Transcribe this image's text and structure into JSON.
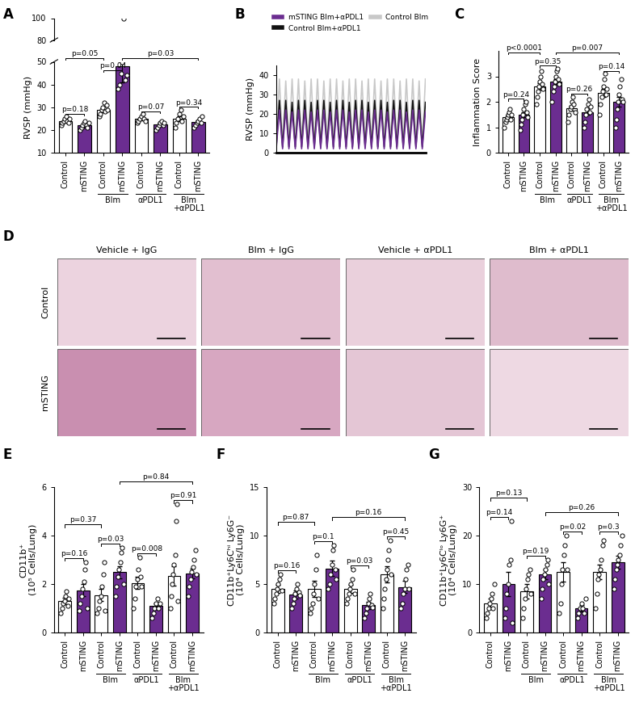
{
  "chart_data": [
    {
      "panel": "A",
      "type": "bar",
      "y_label": "RVSP (mmHg)",
      "categories": [
        "Control",
        "mSTING",
        "Control",
        "mSTING",
        "Control",
        "mSTING",
        "Control",
        "mSTING"
      ],
      "values": [
        24,
        22,
        29,
        48,
        25,
        22.5,
        25,
        23.5
      ],
      "errors": [
        0.8,
        0.9,
        1.2,
        7,
        0.8,
        0.7,
        1.1,
        0.6
      ],
      "points": [
        [
          22,
          23,
          24,
          25,
          26,
          24,
          23,
          25
        ],
        [
          20,
          21,
          22,
          23,
          24,
          22,
          21,
          23
        ],
        [
          26,
          27,
          29,
          30,
          32,
          28,
          31,
          29
        ],
        [
          38,
          40,
          45,
          50,
          100,
          42,
          44
        ],
        [
          23,
          24,
          25,
          26,
          27,
          25,
          24
        ],
        [
          20,
          21,
          22,
          23,
          24,
          22,
          23
        ],
        [
          21,
          23,
          25,
          27,
          29,
          24,
          26
        ],
        [
          21,
          22,
          23,
          24,
          25,
          23,
          26
        ]
      ],
      "colors": [
        "#ffffff",
        "#6b2d90",
        "#ffffff",
        "#6b2d90",
        "#ffffff",
        "#6b2d90",
        "#ffffff",
        "#6b2d90"
      ],
      "ylim": [
        10,
        50
      ],
      "yticks": [
        10,
        20,
        30,
        40,
        50
      ],
      "break": {
        "ylim": [
          80,
          100
        ],
        "yticks": [
          80,
          100
        ]
      },
      "groups": [
        {
          "label": "Blm",
          "members": [
            2,
            3
          ]
        },
        {
          "label": "αPDL1",
          "members": [
            4,
            5
          ]
        },
        {
          "label": "Blm\n+αPDL1",
          "members": [
            6,
            7
          ]
        }
      ],
      "comparisons": [
        {
          "pair": [
            0,
            1
          ],
          "text": "p=0.18"
        },
        {
          "pair": [
            0,
            2
          ],
          "text": "p=0.05"
        },
        {
          "pair": [
            2,
            3
          ],
          "text": "p=0.04"
        },
        {
          "pair": [
            3,
            7
          ],
          "text": "p=0.03"
        },
        {
          "pair": [
            4,
            5
          ],
          "text": "p=0.07"
        },
        {
          "pair": [
            6,
            7
          ],
          "text": "p=0.34"
        }
      ]
    },
    {
      "panel": "B",
      "type": "line",
      "y_label": "RVSP (mmHg)",
      "tick_labels": "y",
      "legend": "upper center",
      "x": [
        0,
        1,
        2,
        3,
        4,
        5,
        6,
        7,
        8,
        9,
        10,
        11,
        12,
        13,
        14,
        15,
        16,
        17,
        18,
        19,
        20,
        21,
        22,
        23,
        24,
        25,
        26,
        27,
        28,
        29,
        30,
        31,
        32,
        33,
        34,
        35,
        36,
        37,
        38,
        39,
        40,
        41,
        42,
        43,
        44,
        45,
        46,
        47
      ],
      "xlim": [
        0,
        47
      ],
      "ylim": [
        0,
        45
      ],
      "yticks": [
        0,
        10,
        20,
        30,
        40
      ],
      "series": [
        {
          "name": "mSTING Blm+αPDL1",
          "color": "#6b2d90",
          "values": [
            2,
            22,
            2,
            22,
            2,
            21,
            2,
            22,
            2,
            22,
            2,
            21,
            2,
            22,
            2,
            22,
            2,
            21,
            2,
            22,
            2,
            22,
            2,
            21,
            2,
            22,
            2,
            22,
            2,
            21,
            2,
            22,
            2,
            22,
            2,
            21,
            2,
            22,
            2,
            22,
            2,
            21,
            2,
            22,
            2,
            22,
            2,
            21
          ]
        },
        {
          "name": "Control Blm+αPDL1",
          "color": "#111111",
          "values": [
            3,
            27,
            3,
            27,
            3,
            26,
            3,
            27,
            3,
            27,
            3,
            26,
            3,
            27,
            3,
            27,
            3,
            26,
            3,
            27,
            3,
            27,
            3,
            26,
            3,
            27,
            3,
            27,
            3,
            26,
            3,
            27,
            3,
            27,
            3,
            26,
            3,
            27,
            3,
            27,
            3,
            26,
            3,
            27,
            3,
            27,
            3,
            26
          ]
        },
        {
          "name": "Control Blm",
          "color": "#c8c8c8",
          "values": [
            5,
            38,
            5,
            37,
            5,
            38,
            5,
            38,
            5,
            37,
            5,
            38,
            5,
            38,
            5,
            37,
            5,
            38,
            5,
            38,
            5,
            37,
            5,
            38,
            5,
            38,
            5,
            37,
            5,
            38,
            5,
            38,
            5,
            37,
            5,
            38,
            5,
            38,
            5,
            37,
            5,
            38,
            5,
            38,
            5,
            37,
            5,
            38
          ]
        }
      ]
    },
    {
      "panel": "C",
      "type": "bar",
      "y_label": "Inflammation Score",
      "categories": [
        "Control",
        "mSTING",
        "Control",
        "mSTING",
        "Control",
        "mSTING",
        "Control",
        "mSTING"
      ],
      "values": [
        1.4,
        1.5,
        2.6,
        2.8,
        1.75,
        1.6,
        2.35,
        2.0
      ],
      "errors": [
        0.08,
        0.1,
        0.12,
        0.1,
        0.1,
        0.12,
        0.15,
        0.2
      ],
      "points": [
        [
          1.0,
          1.2,
          1.3,
          1.4,
          1.5,
          1.6,
          1.7,
          1.3,
          1.5
        ],
        [
          0.9,
          1.1,
          1.3,
          1.5,
          1.7,
          1.9,
          2.0,
          1.6,
          1.4
        ],
        [
          1.9,
          2.2,
          2.4,
          2.6,
          2.8,
          3.0,
          3.2,
          2.7,
          2.5
        ],
        [
          2.0,
          2.4,
          2.6,
          2.8,
          3.0,
          3.2,
          3.3,
          2.9,
          2.7
        ],
        [
          1.2,
          1.5,
          1.7,
          1.8,
          2.0,
          2.2,
          1.9,
          1.6
        ],
        [
          1.0,
          1.2,
          1.5,
          1.7,
          1.9,
          2.1,
          1.6,
          1.8
        ],
        [
          1.5,
          1.9,
          2.2,
          2.4,
          2.6,
          2.9,
          3.1,
          2.3,
          2.5
        ],
        [
          1.0,
          1.3,
          1.7,
          2.0,
          2.3,
          2.6,
          2.9,
          2.1,
          2.0
        ]
      ],
      "colors": [
        "#ffffff",
        "#6b2d90",
        "#ffffff",
        "#6b2d90",
        "#ffffff",
        "#6b2d90",
        "#ffffff",
        "#6b2d90"
      ],
      "ylim": [
        0,
        4
      ],
      "yticks": [
        0,
        1,
        2,
        3
      ],
      "groups": [
        {
          "label": "Blm",
          "members": [
            2,
            3
          ]
        },
        {
          "label": "αPDL1",
          "members": [
            4,
            5
          ]
        },
        {
          "label": "Blm\n+αPDL1",
          "members": [
            6,
            7
          ]
        }
      ],
      "comparisons": [
        {
          "pair": [
            0,
            1
          ],
          "text": "p=0.24"
        },
        {
          "pair": [
            0,
            2
          ],
          "text": "p<0.0001"
        },
        {
          "pair": [
            2,
            3
          ],
          "text": "p=0.35"
        },
        {
          "pair": [
            3,
            7
          ],
          "text": "p=0.007"
        },
        {
          "pair": [
            4,
            5
          ],
          "text": "p=0.26"
        },
        {
          "pair": [
            6,
            7
          ],
          "text": "p=0.14"
        }
      ]
    },
    {
      "panel": "D",
      "type": "image_grid",
      "columns": [
        "Vehicle + IgG",
        "Blm + IgG",
        "Vehicle + αPDL1",
        "Blm + αPDL1"
      ],
      "rows": [
        "Control",
        "mSTING"
      ]
    },
    {
      "panel": "E",
      "type": "bar",
      "y_label": "CD11b⁺\n(10⁵ Cells/Lung)",
      "categories": [
        "Control",
        "mSTING",
        "Control",
        "mSTING",
        "Control",
        "mSTING",
        "Control",
        "mSTING"
      ],
      "values": [
        1.3,
        1.75,
        1.55,
        2.5,
        2.05,
        1.1,
        2.35,
        2.45
      ],
      "errors": [
        0.12,
        0.25,
        0.25,
        0.25,
        0.25,
        0.1,
        0.4,
        0.2
      ],
      "points": [
        [
          0.8,
          1.0,
          1.2,
          1.3,
          1.5,
          1.7,
          1.1,
          1.4
        ],
        [
          0.9,
          1.2,
          1.5,
          1.8,
          2.1,
          2.6,
          2.9,
          1.0
        ],
        [
          0.8,
          1.0,
          1.3,
          1.5,
          1.9,
          2.4,
          2.9,
          0.9
        ],
        [
          1.5,
          1.9,
          2.3,
          2.6,
          2.9,
          3.3,
          3.5,
          2.0
        ],
        [
          1.0,
          1.4,
          1.9,
          2.2,
          2.6,
          3.1,
          2.3,
          1.9
        ],
        [
          0.6,
          0.8,
          1.0,
          1.2,
          1.4,
          1.0,
          1.2
        ],
        [
          1.0,
          1.5,
          2.0,
          2.4,
          2.8,
          3.2,
          4.6,
          5.3,
          1.3
        ],
        [
          1.5,
          1.9,
          2.2,
          2.5,
          2.7,
          3.0,
          3.4,
          2.4
        ]
      ],
      "colors": [
        "#ffffff",
        "#6b2d90",
        "#ffffff",
        "#6b2d90",
        "#ffffff",
        "#6b2d90",
        "#ffffff",
        "#6b2d90"
      ],
      "ylim": [
        0,
        6
      ],
      "yticks": [
        0,
        2,
        4,
        6
      ],
      "groups": [
        {
          "label": "Blm",
          "members": [
            2,
            3
          ]
        },
        {
          "label": "αPDL1",
          "members": [
            4,
            5
          ]
        },
        {
          "label": "Blm\n+αPDL1",
          "members": [
            6,
            7
          ]
        }
      ],
      "comparisons": [
        {
          "pair": [
            0,
            1
          ],
          "text": "p=0.16"
        },
        {
          "pair": [
            0,
            2
          ],
          "text": "p=0.37"
        },
        {
          "pair": [
            2,
            3
          ],
          "text": "p=0.03"
        },
        {
          "pair": [
            3,
            7
          ],
          "text": "p=0.84"
        },
        {
          "pair": [
            4,
            5
          ],
          "text": "p=0.008"
        },
        {
          "pair": [
            6,
            7
          ],
          "text": "p=0.91"
        }
      ]
    },
    {
      "panel": "F",
      "type": "bar",
      "y_label": "CD11b⁺Ly6Cʰⁱ Ly6G⁻\n(10⁴ Cells/Lung)",
      "categories": [
        "Control",
        "mSTING",
        "Control",
        "mSTING",
        "Control",
        "mSTING",
        "Control",
        "mSTING"
      ],
      "values": [
        4.5,
        3.9,
        4.5,
        6.6,
        4.5,
        2.8,
        6.0,
        4.7
      ],
      "errors": [
        0.4,
        0.4,
        0.8,
        0.8,
        0.4,
        0.4,
        0.8,
        0.6
      ],
      "points": [
        [
          3.0,
          3.5,
          4.0,
          4.5,
          5.0,
          5.5,
          6.0,
          4.3
        ],
        [
          2.5,
          3.0,
          3.5,
          4.0,
          4.5,
          5.0,
          4.2,
          3.8
        ],
        [
          2.0,
          2.5,
          3.0,
          4.0,
          5.0,
          6.5,
          8.0,
          3.5
        ],
        [
          4.5,
          5.0,
          6.0,
          7.0,
          8.5,
          9.0,
          6.5,
          5.5
        ],
        [
          3.0,
          3.5,
          4.0,
          4.5,
          5.0,
          5.5,
          6.5,
          4.0
        ],
        [
          1.5,
          2.0,
          2.5,
          3.0,
          3.5,
          4.0,
          2.8,
          2.6
        ],
        [
          2.5,
          3.5,
          4.5,
          5.5,
          6.5,
          7.5,
          8.5,
          9.5,
          6.0
        ],
        [
          2.5,
          3.0,
          4.0,
          4.5,
          5.5,
          6.5,
          7.0,
          4.5
        ]
      ],
      "colors": [
        "#ffffff",
        "#6b2d90",
        "#ffffff",
        "#6b2d90",
        "#ffffff",
        "#6b2d90",
        "#ffffff",
        "#6b2d90"
      ],
      "ylim": [
        0,
        15
      ],
      "yticks": [
        0,
        5,
        10,
        15
      ],
      "groups": [
        {
          "label": "Blm",
          "members": [
            2,
            3
          ]
        },
        {
          "label": "αPDL1",
          "members": [
            4,
            5
          ]
        },
        {
          "label": "Blm\n+αPDL1",
          "members": [
            6,
            7
          ]
        }
      ],
      "comparisons": [
        {
          "pair": [
            0,
            1
          ],
          "text": "p=0.16"
        },
        {
          "pair": [
            0,
            2
          ],
          "text": "p=0.87"
        },
        {
          "pair": [
            2,
            3
          ],
          "text": "p=0.1"
        },
        {
          "pair": [
            3,
            7
          ],
          "text": "p=0.16"
        },
        {
          "pair": [
            4,
            5
          ],
          "text": "p=0.03"
        },
        {
          "pair": [
            6,
            7
          ],
          "text": "p=0.45"
        }
      ]
    },
    {
      "panel": "G",
      "type": "bar",
      "y_label": "CD11b⁺Ly6Cˡᵒ Ly6G⁺\n(10⁴ Cells/Lung)",
      "categories": [
        "Control",
        "mSTING",
        "Control",
        "mSTING",
        "Control",
        "mSTING",
        "Control",
        "mSTING"
      ],
      "values": [
        6,
        10,
        8.5,
        12,
        12.5,
        5,
        12.5,
        14.5
      ],
      "errors": [
        1,
        2.5,
        1.5,
        1,
        2,
        0.6,
        1.5,
        1.3
      ],
      "points": [
        [
          3,
          4,
          5,
          6,
          7,
          8,
          5,
          10
        ],
        [
          3,
          5,
          8,
          10,
          14,
          15,
          23,
          2
        ],
        [
          3,
          5,
          7,
          9,
          11,
          12,
          13,
          8
        ],
        [
          7,
          9,
          11,
          12,
          13,
          14,
          15,
          10
        ],
        [
          4,
          6,
          10,
          13,
          16,
          18,
          20,
          13
        ],
        [
          3,
          4,
          5,
          6,
          5,
          4,
          7
        ],
        [
          5,
          8,
          11,
          12,
          13,
          15,
          18,
          19
        ],
        [
          9,
          11,
          13,
          14,
          15,
          16,
          18,
          20
        ]
      ],
      "colors": [
        "#ffffff",
        "#6b2d90",
        "#ffffff",
        "#6b2d90",
        "#ffffff",
        "#6b2d90",
        "#ffffff",
        "#6b2d90"
      ],
      "ylim": [
        0,
        30
      ],
      "yticks": [
        0,
        10,
        20,
        30
      ],
      "groups": [
        {
          "label": "Blm",
          "members": [
            2,
            3
          ]
        },
        {
          "label": "αPDL1",
          "members": [
            4,
            5
          ]
        },
        {
          "label": "Blm\n+αPDL1",
          "members": [
            6,
            7
          ]
        }
      ],
      "comparisons": [
        {
          "pair": [
            0,
            1
          ],
          "text": "p=0.14"
        },
        {
          "pair": [
            0,
            2
          ],
          "text": "p=0.13"
        },
        {
          "pair": [
            2,
            3
          ],
          "text": "p=0.19"
        },
        {
          "pair": [
            3,
            7
          ],
          "text": "p=0.26"
        },
        {
          "pair": [
            4,
            5
          ],
          "text": "p=0.02"
        },
        {
          "pair": [
            6,
            7
          ],
          "text": "p=0.3"
        }
      ]
    }
  ]
}
